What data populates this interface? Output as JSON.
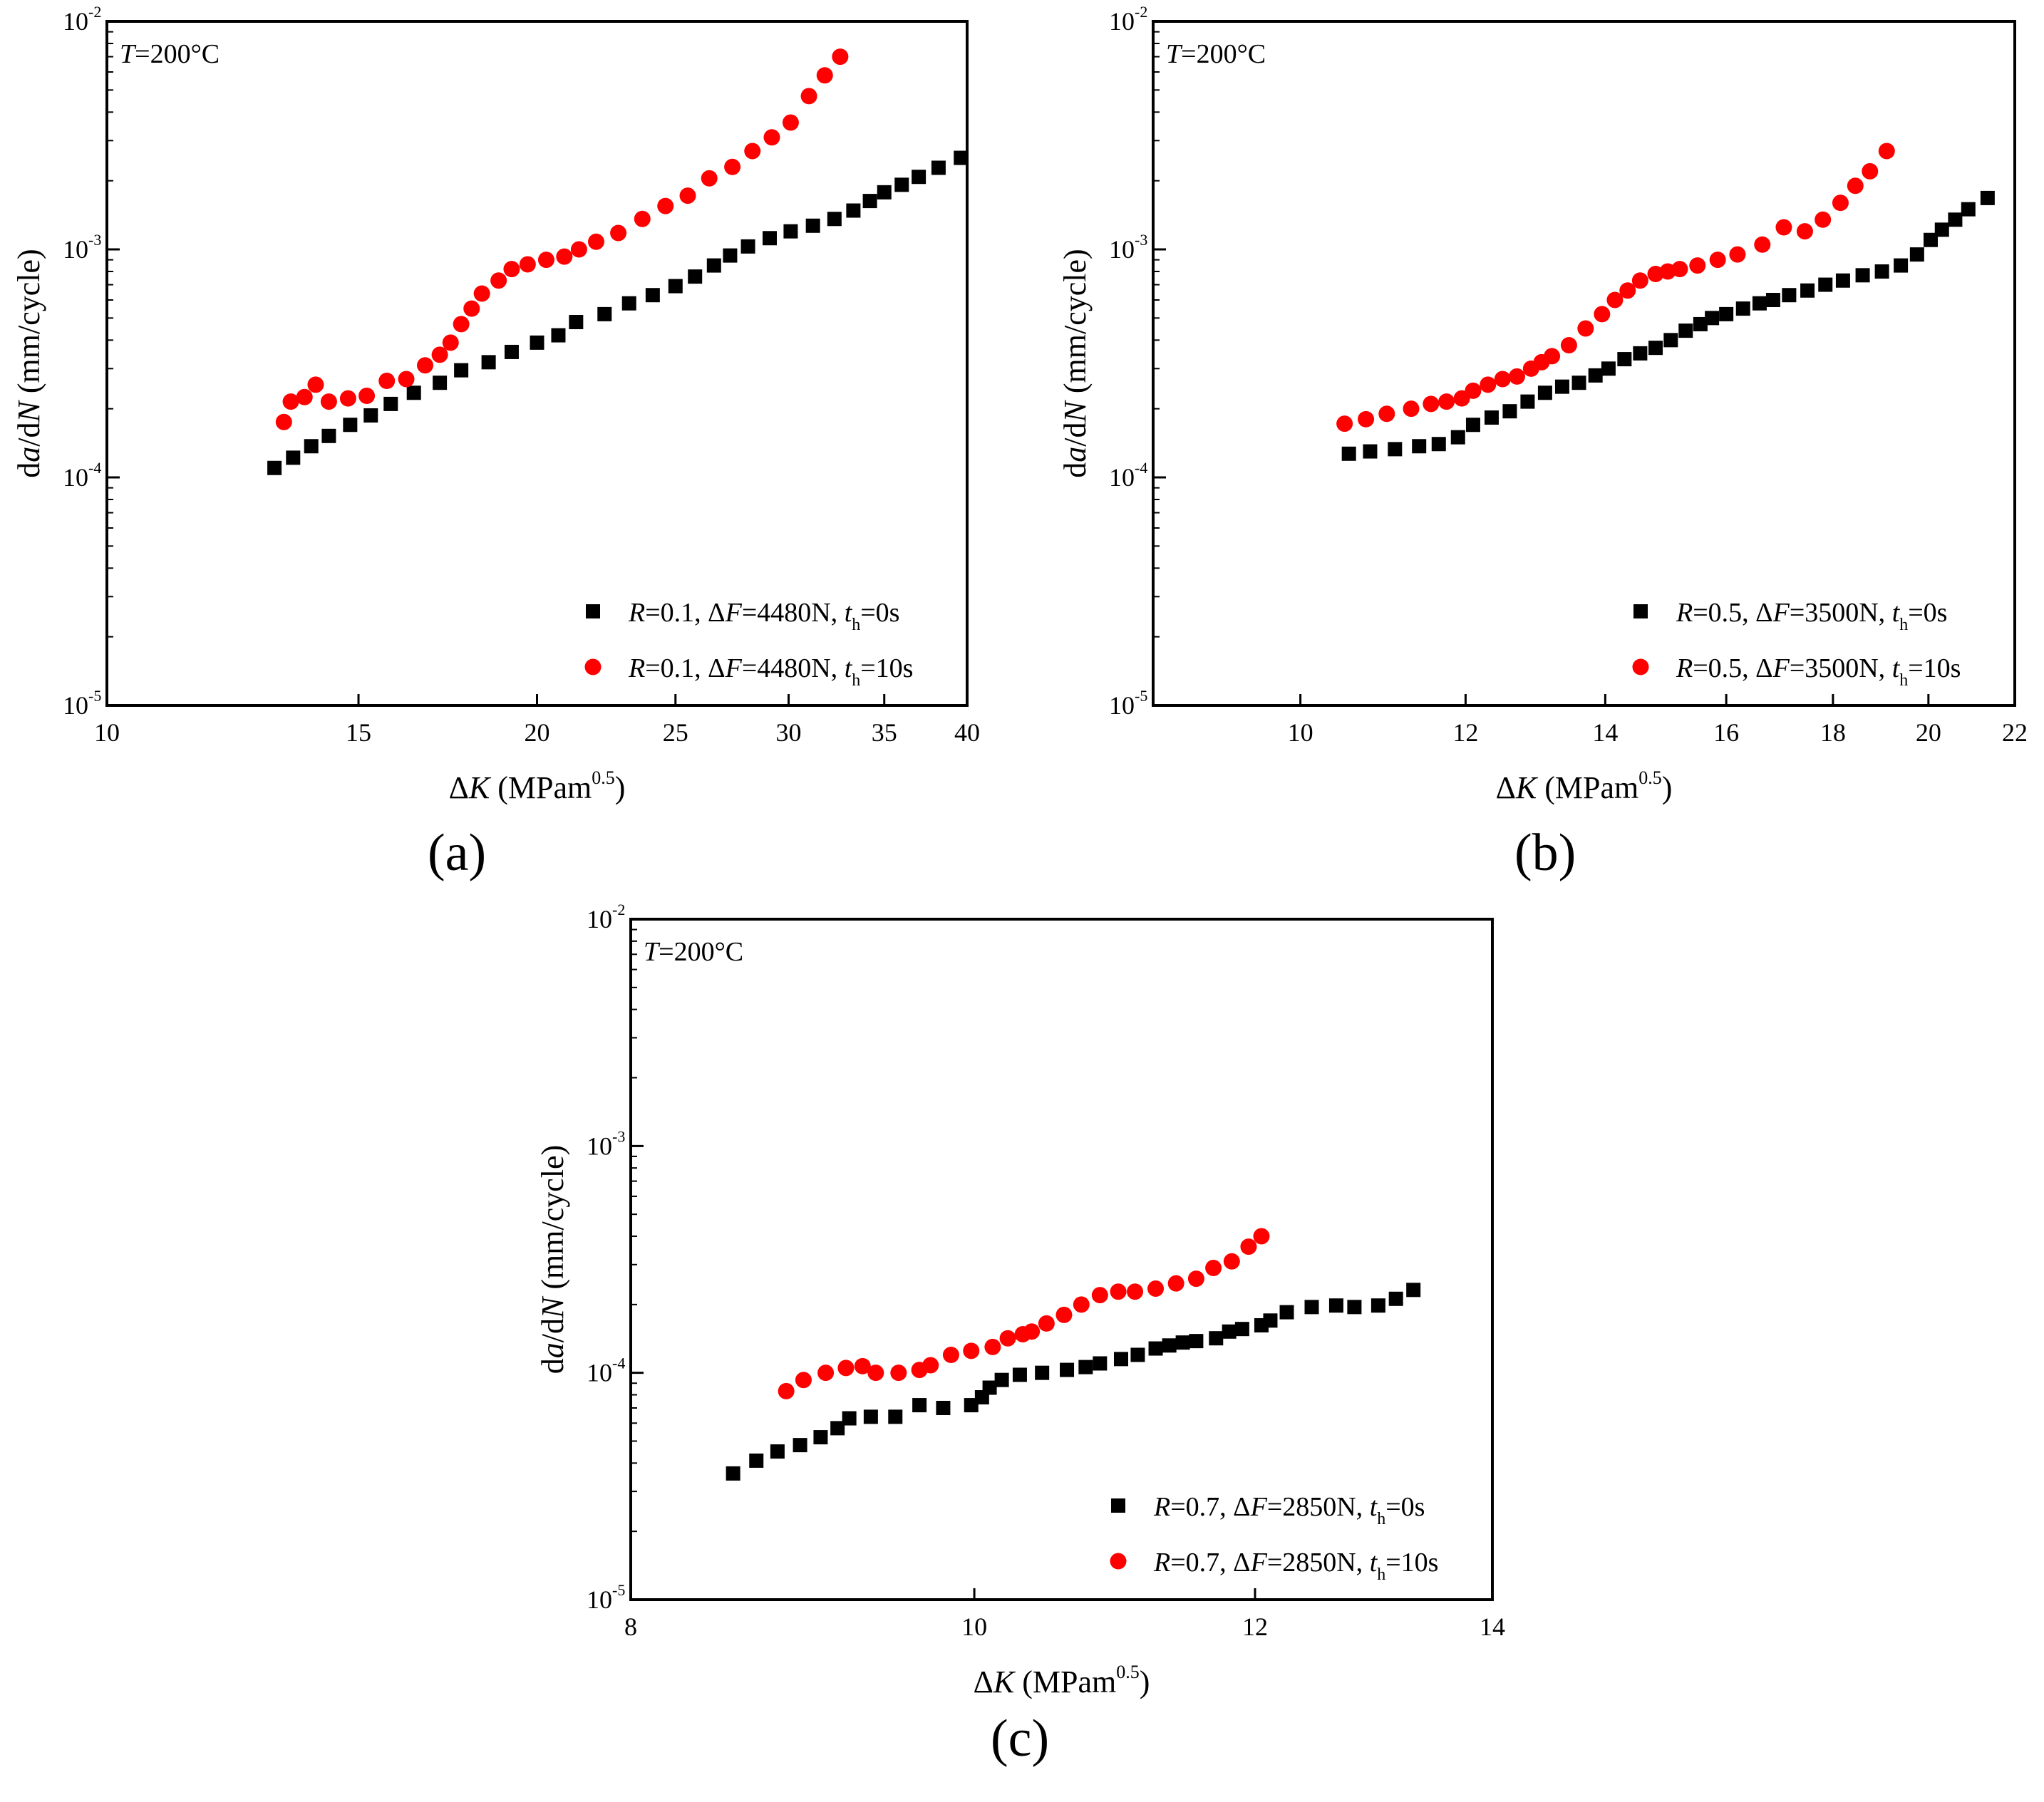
{
  "chart_data": [
    {
      "type": "scatter",
      "panel_label": "(a)",
      "title": "",
      "annotation_prefix": "T",
      "annotation_suffix": "=200°C",
      "xlabel_delta": "Δ",
      "xlabel_var": "K",
      "xlabel_unit": " (MPam",
      "xlabel_sup": "0.5",
      "xlabel_close": ")",
      "ylabel_d": "d",
      "ylabel_a": "a",
      "ylabel_slash": "/d",
      "ylabel_N": "N",
      "ylabel_unit": " (mm/cycle)",
      "xscale": "log",
      "yscale": "log",
      "xlim": [
        10,
        40
      ],
      "ylim": [
        1e-05,
        0.01
      ],
      "xticks": [
        10,
        15,
        20,
        25,
        30,
        35,
        40
      ],
      "xtick_labels": [
        "10",
        "15",
        "20",
        "25",
        "30",
        "35",
        "40"
      ],
      "ytick_exps": [
        "-5",
        "-4",
        "-3",
        "-2"
      ],
      "legend_position": "bottom-right",
      "series": [
        {
          "name": "R=0.1, ΔF=4480N, th=0s",
          "legend": {
            "R": "R",
            "r_val": "=0.1, Δ",
            "F": "F",
            "f_val": "=4480N, ",
            "t": "t",
            "sub": "h",
            "t_val": "=0s"
          },
          "marker": "square",
          "color": "#000000",
          "x": [
            13.1,
            13.5,
            13.9,
            14.3,
            14.8,
            15.3,
            15.8,
            16.4,
            17.1,
            17.7,
            18.5,
            19.2,
            20.0,
            20.7,
            21.3,
            22.3,
            23.2,
            24.1,
            25.0,
            25.8,
            26.6,
            27.3,
            28.1,
            29.1,
            30.1,
            31.2,
            32.3,
            33.3,
            34.2,
            35.0,
            36.0,
            37.0,
            38.2,
            39.6
          ],
          "y": [
            0.00011,
            0.000122,
            0.000137,
            0.000152,
            0.00017,
            0.000187,
            0.00021,
            0.000235,
            0.00026,
            0.000295,
            0.00032,
            0.000355,
            0.00039,
            0.00042,
            0.00048,
            0.00052,
            0.00058,
            0.00063,
            0.00069,
            0.00076,
            0.00085,
            0.00094,
            0.00103,
            0.00112,
            0.0012,
            0.00127,
            0.00136,
            0.00148,
            0.00163,
            0.00178,
            0.00192,
            0.00208,
            0.00228,
            0.00252
          ]
        },
        {
          "name": "R=0.1, ΔF=4480N, th=10s",
          "legend": {
            "R": "R",
            "r_val": "=0.1, Δ",
            "F": "F",
            "f_val": "=4480N, ",
            "t": "t",
            "sub": "h",
            "t_val": "=10s"
          },
          "marker": "circle",
          "color": "#ff0000",
          "x": [
            13.3,
            13.45,
            13.75,
            14.0,
            14.3,
            14.75,
            15.2,
            15.7,
            16.2,
            16.7,
            17.1,
            17.4,
            17.7,
            18.0,
            18.3,
            18.8,
            19.2,
            19.7,
            20.3,
            20.9,
            21.4,
            22.0,
            22.8,
            23.7,
            24.6,
            25.5,
            26.4,
            27.4,
            28.3,
            29.2,
            30.1,
            31.0,
            31.8,
            32.6
          ],
          "y": [
            0.000175,
            0.000215,
            0.000225,
            0.000255,
            0.000215,
            0.000222,
            0.000228,
            0.000265,
            0.00027,
            0.00031,
            0.000345,
            0.00039,
            0.00047,
            0.00055,
            0.00064,
            0.00073,
            0.00082,
            0.00086,
            0.0009,
            0.00093,
            0.001,
            0.00108,
            0.00118,
            0.00136,
            0.00155,
            0.00172,
            0.00205,
            0.0023,
            0.0027,
            0.0031,
            0.0036,
            0.0047,
            0.0058,
            0.007
          ]
        }
      ]
    },
    {
      "type": "scatter",
      "panel_label": "(b)",
      "title": "",
      "annotation_prefix": "T",
      "annotation_suffix": "=200°C",
      "xlabel_delta": "Δ",
      "xlabel_var": "K",
      "xlabel_unit": " (MPam",
      "xlabel_sup": "0.5",
      "xlabel_close": ")",
      "ylabel_d": "d",
      "ylabel_a": "a",
      "ylabel_slash": "/d",
      "ylabel_N": "N",
      "ylabel_unit": " (mm/cycle)",
      "xscale": "log",
      "yscale": "log",
      "xlim": [
        8.5,
        22
      ],
      "ylim": [
        1e-05,
        0.01
      ],
      "xticks": [
        10,
        12,
        14,
        16,
        18,
        20,
        22
      ],
      "xtick_labels": [
        "10",
        "12",
        "14",
        "16",
        "18",
        "20",
        "22"
      ],
      "ytick_exps": [
        "-5",
        "-4",
        "-3",
        "-2"
      ],
      "legend_position": "bottom-right",
      "series": [
        {
          "name": "R=0.5, ΔF=3500N, th=0s",
          "legend": {
            "R": "R",
            "r_val": "=0.5, Δ",
            "F": "F",
            "f_val": "=3500N, ",
            "t": "t",
            "sub": "h",
            "t_val": "=0s"
          },
          "marker": "square",
          "color": "#000000",
          "x": [
            10.55,
            10.8,
            11.1,
            11.4,
            11.65,
            11.9,
            12.1,
            12.35,
            12.6,
            12.85,
            13.1,
            13.35,
            13.6,
            13.85,
            14.05,
            14.3,
            14.55,
            14.8,
            15.05,
            15.3,
            15.55,
            15.75,
            16.0,
            16.3,
            16.6,
            16.85,
            17.15,
            17.5,
            17.85,
            18.2,
            18.6,
            19.0,
            19.4,
            19.75,
            20.05,
            20.3,
            20.6,
            20.9,
            21.35
          ],
          "y": [
            0.000127,
            0.00013,
            0.000133,
            0.000137,
            0.00014,
            0.00015,
            0.00017,
            0.000183,
            0.000195,
            0.000215,
            0.000235,
            0.00025,
            0.00026,
            0.00028,
            0.0003,
            0.00033,
            0.00035,
            0.00037,
            0.0004,
            0.00044,
            0.00047,
            0.0005,
            0.00052,
            0.00055,
            0.00058,
            0.0006,
            0.00063,
            0.00066,
            0.0007,
            0.00073,
            0.00077,
            0.0008,
            0.00085,
            0.00095,
            0.0011,
            0.00122,
            0.00135,
            0.0015,
            0.00168
          ]
        },
        {
          "name": "R=0.5, ΔF=3500N, th=10s",
          "legend": {
            "R": "R",
            "r_val": "=0.5, Δ",
            "F": "F",
            "f_val": "=3500N, ",
            "t": "t",
            "sub": "h",
            "t_val": "=10s"
          },
          "marker": "circle",
          "color": "#ff0000",
          "x": [
            10.5,
            10.75,
            11.0,
            11.3,
            11.55,
            11.75,
            11.95,
            12.1,
            12.3,
            12.5,
            12.7,
            12.9,
            13.05,
            13.2,
            13.45,
            13.7,
            13.95,
            14.15,
            14.35,
            14.55,
            14.8,
            15.0,
            15.2,
            15.5,
            15.85,
            16.2,
            16.65,
            17.05,
            17.45,
            17.8,
            18.15,
            18.45,
            18.75,
            19.1
          ],
          "y": [
            0.000172,
            0.00018,
            0.00019,
            0.0002,
            0.00021,
            0.000215,
            0.000222,
            0.00024,
            0.000255,
            0.00027,
            0.000277,
            0.0003,
            0.00032,
            0.00034,
            0.00038,
            0.00045,
            0.00052,
            0.0006,
            0.00066,
            0.00073,
            0.00078,
            0.0008,
            0.00082,
            0.00085,
            0.0009,
            0.00095,
            0.00105,
            0.00125,
            0.0012,
            0.00135,
            0.0016,
            0.0019,
            0.0022,
            0.0027
          ]
        }
      ]
    },
    {
      "type": "scatter",
      "panel_label": "(c)",
      "title": "",
      "annotation_prefix": "T",
      "annotation_suffix": "=200°C",
      "xlabel_delta": "Δ",
      "xlabel_var": "K",
      "xlabel_unit": " (MPam",
      "xlabel_sup": "0.5",
      "xlabel_close": ")",
      "ylabel_d": "d",
      "ylabel_a": "a",
      "ylabel_slash": "/d",
      "ylabel_N": "N",
      "ylabel_unit": " (mm/cycle)",
      "xscale": "log",
      "yscale": "log",
      "xlim": [
        8,
        14
      ],
      "ylim": [
        1e-05,
        0.01
      ],
      "xticks": [
        8,
        10,
        12,
        14
      ],
      "xtick_labels": [
        "8",
        "10",
        "12",
        "14"
      ],
      "ytick_exps": [
        "-5",
        "-4",
        "-3",
        "-2"
      ],
      "legend_position": "bottom-right",
      "series": [
        {
          "name": "R=0.7, ΔF=2850N, th=0s",
          "legend": {
            "R": "R",
            "r_val": "=0.7, Δ",
            "F": "F",
            "f_val": "=2850N, ",
            "t": "t",
            "sub": "h",
            "t_val": "=0s"
          },
          "marker": "square",
          "color": "#000000",
          "x": [
            8.55,
            8.68,
            8.8,
            8.93,
            9.05,
            9.15,
            9.22,
            9.35,
            9.5,
            9.65,
            9.8,
            9.98,
            10.05,
            10.1,
            10.18,
            10.3,
            10.45,
            10.62,
            10.75,
            10.85,
            11.0,
            11.12,
            11.25,
            11.35,
            11.45,
            11.55,
            11.7,
            11.8,
            11.9,
            12.05,
            12.12,
            12.25,
            12.45,
            12.65,
            12.8,
            13.0,
            13.15,
            13.3
          ],
          "y": [
            3.6e-05,
            4.1e-05,
            4.5e-05,
            4.8e-05,
            5.2e-05,
            5.7e-05,
            6.3e-05,
            6.4e-05,
            6.4e-05,
            7.2e-05,
            7e-05,
            7.2e-05,
            7.8e-05,
            8.6e-05,
            9.3e-05,
            9.8e-05,
            0.0001,
            0.000103,
            0.000106,
            0.00011,
            0.000115,
            0.00012,
            0.000128,
            0.000132,
            0.000136,
            0.000138,
            0.000142,
            0.000152,
            0.000156,
            0.000162,
            0.00017,
            0.000185,
            0.000195,
            0.000198,
            0.000195,
            0.000198,
            0.000212,
            0.000232
          ]
        },
        {
          "name": "R=0.7, ΔF=2850N, th=10s",
          "legend": {
            "R": "R",
            "r_val": "=0.7, Δ",
            "F": "F",
            "f_val": "=2850N, ",
            "t": "t",
            "sub": "h",
            "t_val": "=10s"
          },
          "marker": "circle",
          "color": "#ff0000",
          "x": [
            8.85,
            8.95,
            9.08,
            9.2,
            9.3,
            9.38,
            9.52,
            9.65,
            9.72,
            9.85,
            9.98,
            10.12,
            10.22,
            10.32,
            10.38,
            10.48,
            10.6,
            10.72,
            10.85,
            10.98,
            11.1,
            11.25,
            11.4,
            11.55,
            11.68,
            11.82,
            11.95,
            12.05
          ],
          "y": [
            8.3e-05,
            9.3e-05,
            0.0001,
            0.000105,
            0.000107,
            0.0001,
            0.0001,
            0.000103,
            0.000108,
            0.00012,
            0.000125,
            0.00013,
            0.000142,
            0.000148,
            0.000152,
            0.000165,
            0.00018,
            0.0002,
            0.00022,
            0.000228,
            0.000228,
            0.000235,
            0.000248,
            0.00026,
            0.00029,
            0.00031,
            0.00036,
            0.0004
          ]
        }
      ]
    }
  ]
}
